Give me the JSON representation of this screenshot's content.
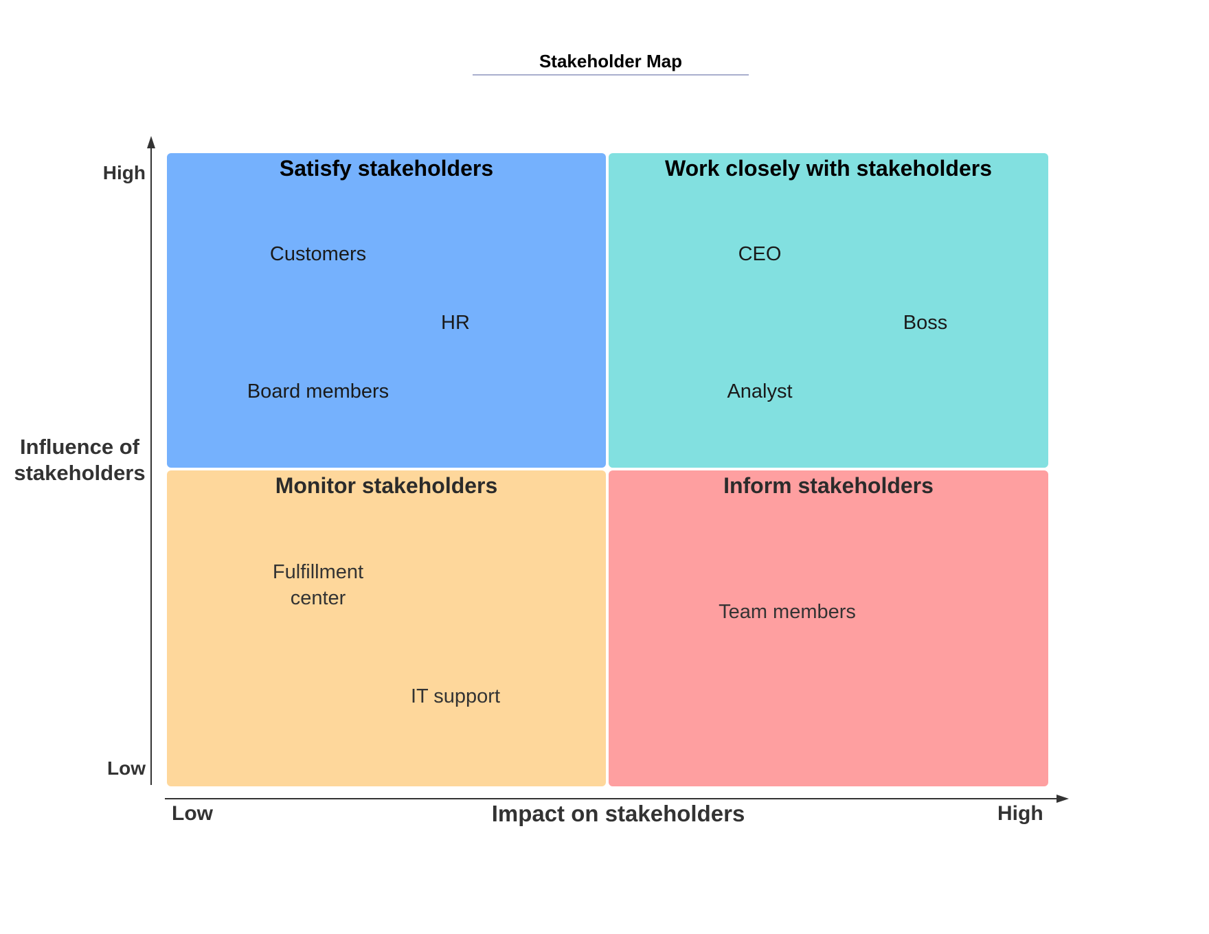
{
  "title": "Stakeholder Map",
  "axes": {
    "y": {
      "title": "Influence of stakeholders",
      "high_label": "High",
      "low_label": "Low"
    },
    "x": {
      "title": "Impact on stakeholders",
      "low_label": "Low",
      "high_label": "High"
    }
  },
  "colors": {
    "satisfy": "#75b1fd",
    "work_closely": "#82e0e0",
    "monitor": "#fed79b",
    "inform": "#fe9fa0",
    "axis": "#333333"
  },
  "quadrants": {
    "satisfy": {
      "title": "Satisfy stakeholders",
      "items": [
        "Customers",
        "HR",
        "Board members"
      ]
    },
    "work_closely": {
      "title": "Work closely with stakeholders",
      "items": [
        "CEO",
        "Boss",
        "Analyst"
      ]
    },
    "monitor": {
      "title": "Monitor stakeholders",
      "items": [
        "Fulfillment\ncenter",
        "IT support"
      ]
    },
    "inform": {
      "title": "Inform stakeholders",
      "items": [
        "Team members"
      ]
    }
  }
}
